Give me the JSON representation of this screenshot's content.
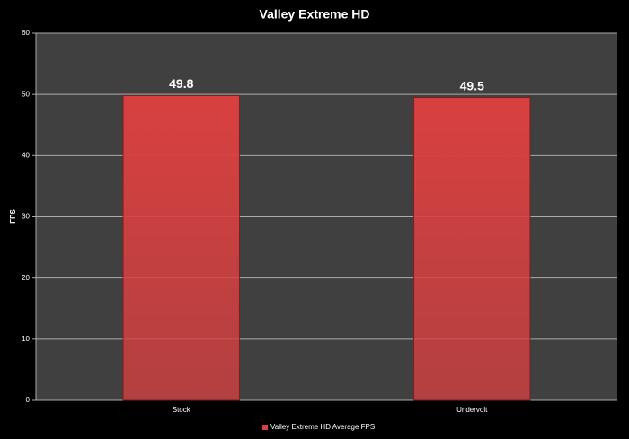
{
  "chart_data": {
    "type": "bar",
    "title": "Valley Extreme HD",
    "y_label": "FPS",
    "categories": [
      "Stock",
      "Undervolt"
    ],
    "series": [
      {
        "name": "Valley Extreme HD Average FPS",
        "color": "#d94040",
        "values": [
          49.8,
          49.5
        ]
      }
    ],
    "ylim": [
      0,
      60
    ],
    "yticks": [
      0,
      10,
      20,
      30,
      40,
      50,
      60
    ],
    "grid": true,
    "legend": "bottom"
  }
}
